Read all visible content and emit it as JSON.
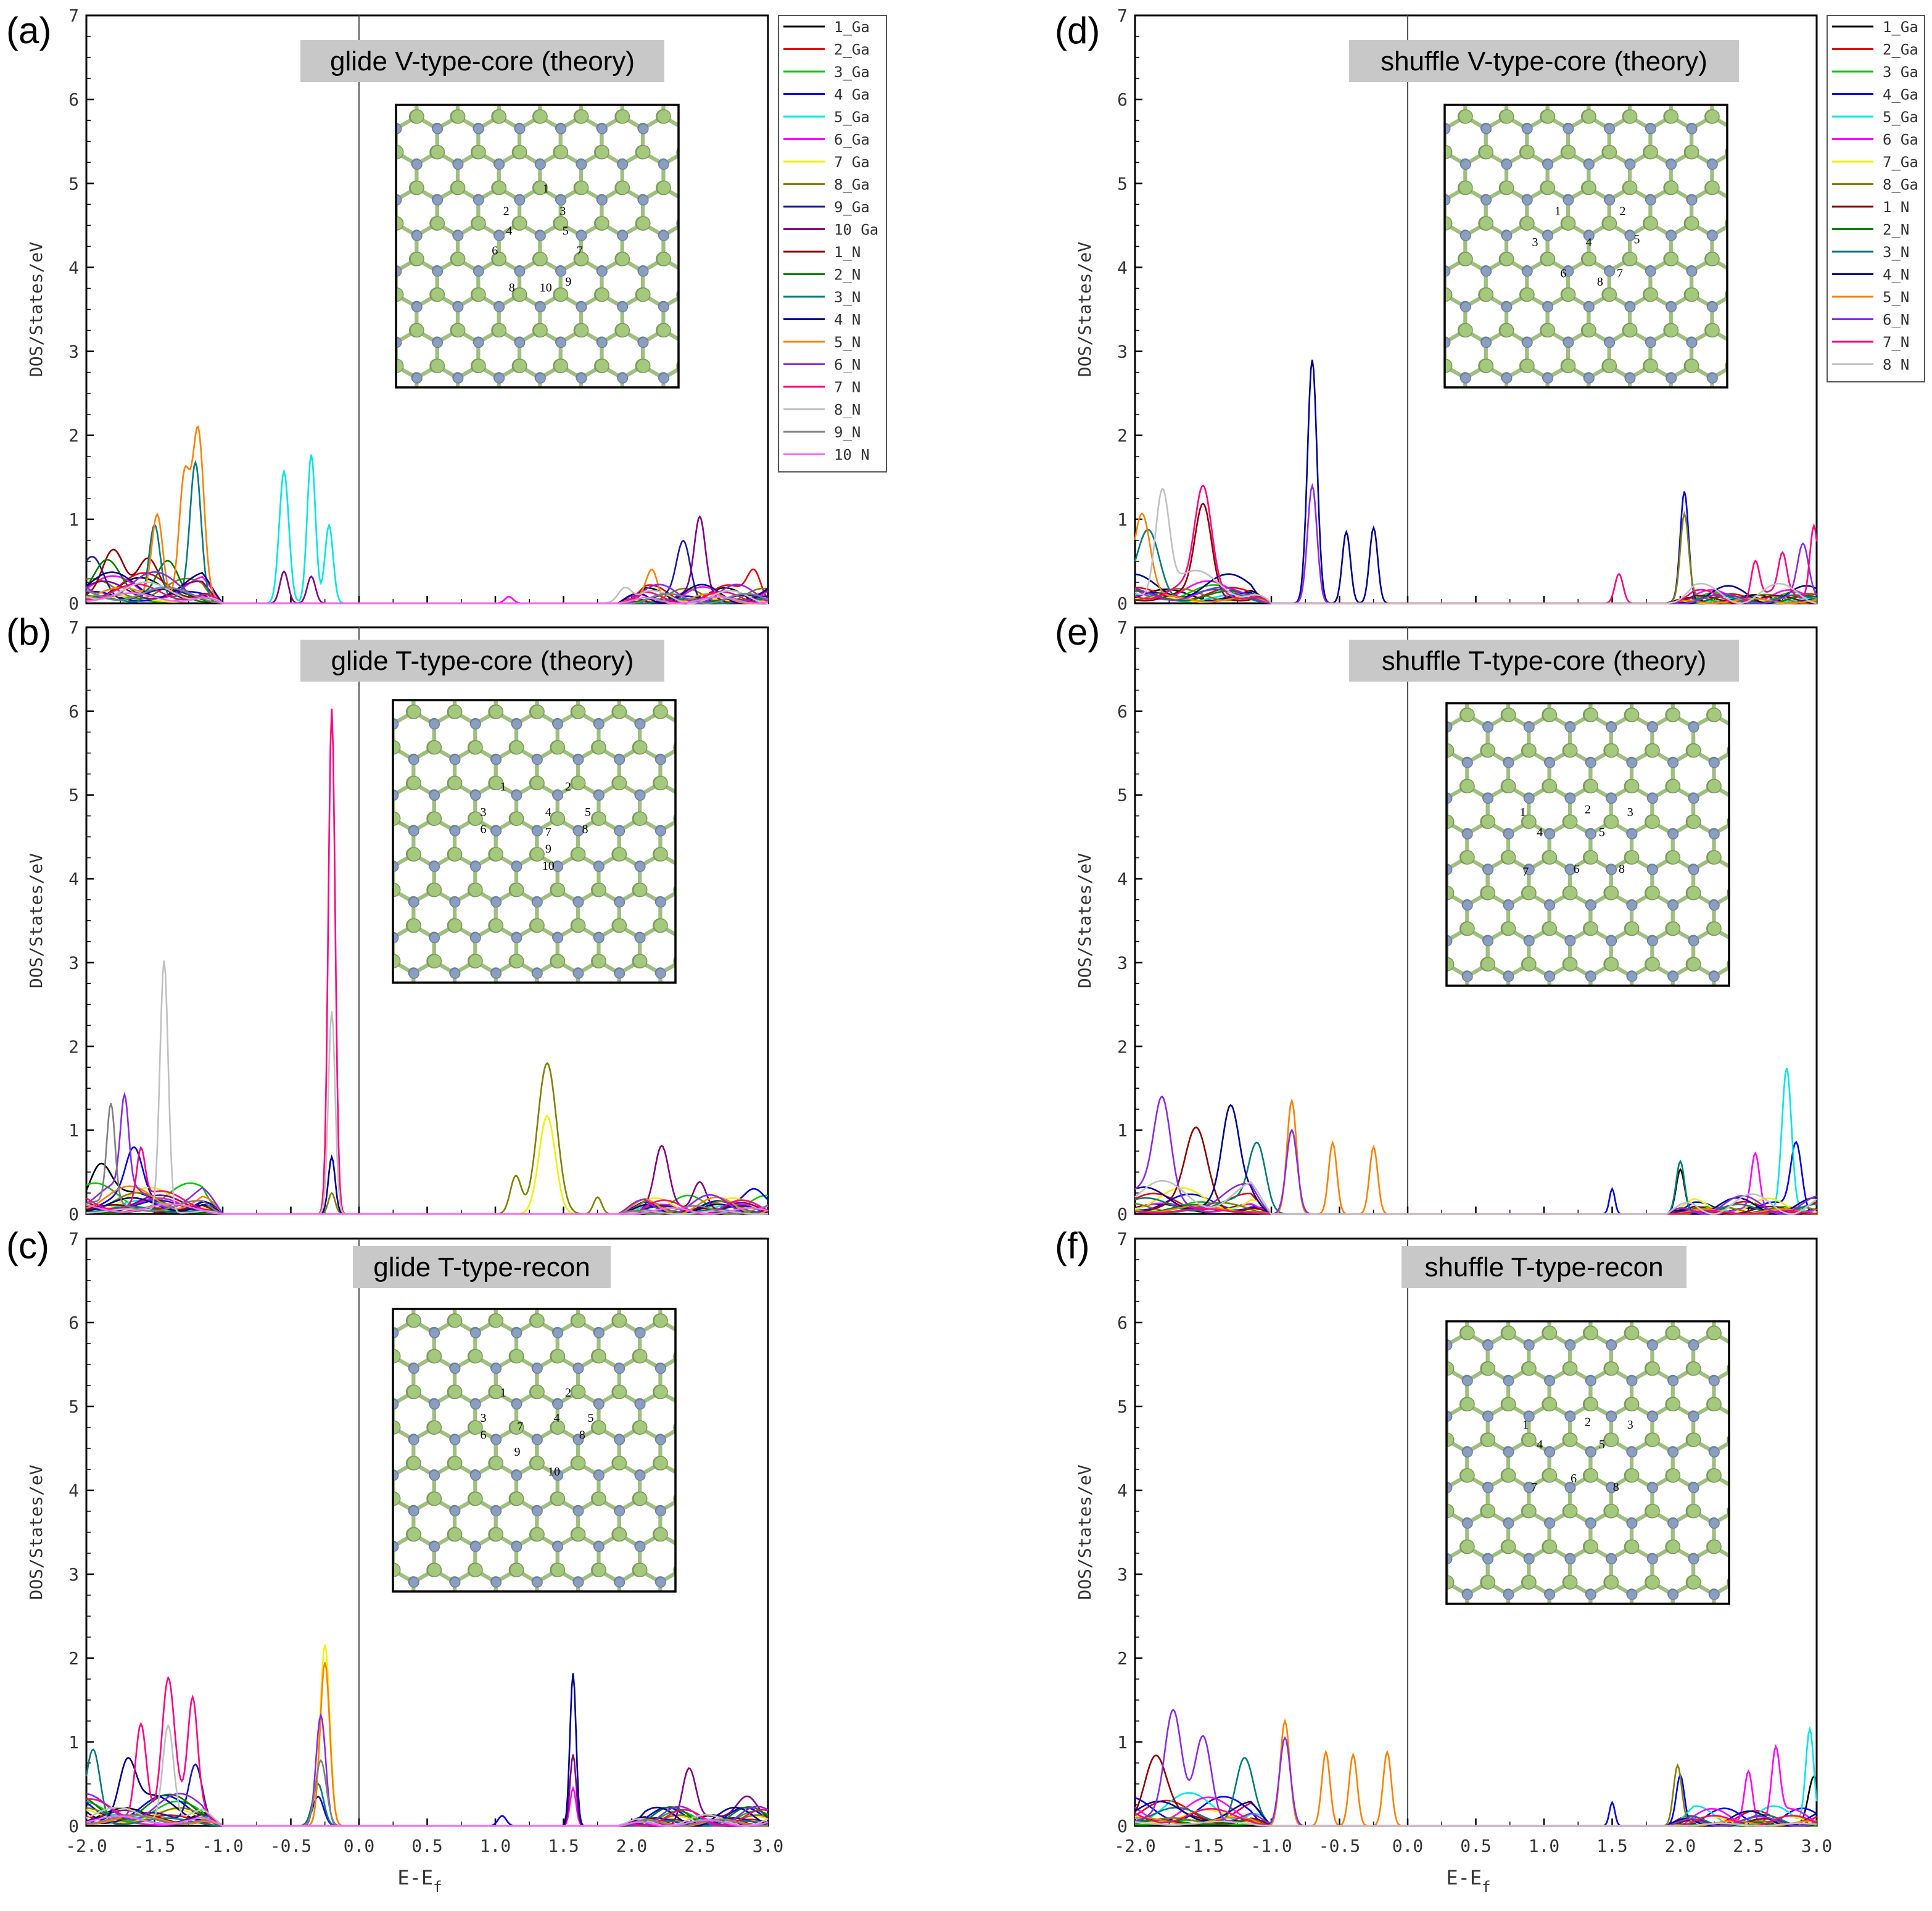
{
  "figure": {
    "xlabel_main": "E-E",
    "xlabel_sub": "f",
    "ylabel": "DOS/States/eV",
    "x_ticks": [
      -2.0,
      -1.5,
      -1.0,
      -0.5,
      0.0,
      0.5,
      1.0,
      1.5,
      2.0,
      2.5,
      3.0
    ],
    "y_ticks": [
      0,
      1,
      2,
      3,
      4,
      5,
      6,
      7
    ],
    "palette": {
      "1_Ga": "#000000",
      "2_Ga": "#e8000b",
      "3_Ga": "#00c800",
      "4_Ga": "#0000e6",
      "5_Ga": "#00e5e5",
      "6_Ga": "#ff00ff",
      "7_Ga": "#f0f000",
      "8_Ga": "#808000",
      "9_Ga": "#1a1a9a",
      "10_Ga": "#800080",
      "1_N": "#8b0000",
      "2_N": "#007a00",
      "3_N": "#007a7a",
      "4_N": "#00008b",
      "5_N": "#ff8000",
      "6_N": "#8a2be2",
      "7_N": "#ff0080",
      "8_N": "#c0c0c0",
      "9_N": "#808080",
      "10_N": "#ff66ff"
    },
    "legend_left": [
      "1_Ga",
      "2_Ga",
      "3_Ga",
      "4 Ga",
      "5_Ga",
      "6_Ga",
      "7 Ga",
      "8_Ga",
      "9_Ga",
      "10 Ga",
      "1_N",
      "2_N",
      "3_N",
      "4 N",
      "5_N",
      "6_N",
      "7 N",
      "8_N",
      "9_N",
      "10 N"
    ],
    "legend_left_keys": [
      "1_Ga",
      "2_Ga",
      "3_Ga",
      "4_Ga",
      "5_Ga",
      "6_Ga",
      "7_Ga",
      "8_Ga",
      "9_Ga",
      "10_Ga",
      "1_N",
      "2_N",
      "3_N",
      "4_N",
      "5_N",
      "6_N",
      "7_N",
      "8_N",
      "9_N",
      "10_N"
    ],
    "legend_right": [
      "1_Ga",
      "2_Ga",
      "3 Ga",
      "4_Ga",
      "5_Ga",
      "6 Ga",
      "7_Ga",
      "8_Ga",
      "1 N",
      "2_N",
      "3_N",
      "4_N",
      "5_N",
      "6_N",
      "7_N",
      "8 N"
    ],
    "legend_right_keys": [
      "1_Ga",
      "2_Ga",
      "3_Ga",
      "4_Ga",
      "5_Ga",
      "6_Ga",
      "7_Ga",
      "8_Ga",
      "1_N",
      "2_N",
      "3_N",
      "4_N",
      "5_N",
      "6_N",
      "7_N",
      "8_N"
    ]
  },
  "chart_data": [
    {
      "panel": "(a)",
      "title": "glide V-type-core (theory)",
      "type": "line",
      "x_range": [
        -2.0,
        3.0
      ],
      "y_range": [
        0,
        7
      ],
      "xlabel": "",
      "ylabel": "DOS/States/eV",
      "inset_atom_labels": [
        "1",
        "2",
        "3",
        "4",
        "5",
        "6",
        "7",
        "8",
        "9",
        "10"
      ],
      "peaks": [
        {
          "series": "5_N",
          "x": -1.48,
          "y": 1.0,
          "w": 0.04
        },
        {
          "series": "5_N",
          "x": -1.28,
          "y": 1.45,
          "w": 0.04
        },
        {
          "series": "5_N",
          "x": -1.18,
          "y": 1.9,
          "w": 0.04
        },
        {
          "series": "3_N",
          "x": -1.5,
          "y": 0.9,
          "w": 0.04
        },
        {
          "series": "3_N",
          "x": -1.2,
          "y": 1.6,
          "w": 0.04
        },
        {
          "series": "5_Ga",
          "x": -0.55,
          "y": 1.57,
          "w": 0.035
        },
        {
          "series": "5_Ga",
          "x": -0.35,
          "y": 1.77,
          "w": 0.03
        },
        {
          "series": "5_Ga",
          "x": -0.22,
          "y": 0.93,
          "w": 0.03
        },
        {
          "series": "10_Ga",
          "x": -0.55,
          "y": 0.38,
          "w": 0.03
        },
        {
          "series": "10_Ga",
          "x": -0.35,
          "y": 0.32,
          "w": 0.03
        },
        {
          "series": "1_N",
          "x": -1.8,
          "y": 0.6,
          "w": 0.08
        },
        {
          "series": "1_N",
          "x": -1.55,
          "y": 0.5,
          "w": 0.08
        },
        {
          "series": "2_N",
          "x": -1.85,
          "y": 0.5,
          "w": 0.1
        },
        {
          "series": "2_N",
          "x": -1.4,
          "y": 0.45,
          "w": 0.08
        },
        {
          "series": "9_Ga",
          "x": -1.95,
          "y": 0.45,
          "w": 0.08
        },
        {
          "series": "10_Ga",
          "x": 2.5,
          "y": 0.88,
          "w": 0.04
        },
        {
          "series": "9_Ga",
          "x": 2.38,
          "y": 0.68,
          "w": 0.05
        },
        {
          "series": "5_N",
          "x": 2.15,
          "y": 0.35,
          "w": 0.04
        },
        {
          "series": "2_Ga",
          "x": 2.9,
          "y": 0.35,
          "w": 0.05
        },
        {
          "series": "6_Ga",
          "x": 1.1,
          "y": 0.08,
          "w": 0.03
        },
        {
          "series": "8_N",
          "x": 1.95,
          "y": 0.18,
          "w": 0.05
        }
      ]
    },
    {
      "panel": "(b)",
      "title": "glide T-type-core (theory)",
      "type": "line",
      "x_range": [
        -2.0,
        3.0
      ],
      "y_range": [
        0,
        7
      ],
      "xlabel": "",
      "ylabel": "DOS/States/eV",
      "inset_atom_labels": [
        "1",
        "2",
        "3",
        "4",
        "5",
        "6",
        "7",
        "8",
        "9",
        "10"
      ],
      "peaks": [
        {
          "series": "9_N",
          "x": -1.82,
          "y": 1.17,
          "w": 0.03
        },
        {
          "series": "6_N",
          "x": -1.72,
          "y": 1.05,
          "w": 0.03
        },
        {
          "series": "8_N",
          "x": -1.43,
          "y": 3.0,
          "w": 0.03
        },
        {
          "series": "7_N",
          "x": -1.6,
          "y": 0.6,
          "w": 0.03
        },
        {
          "series": "7_N",
          "x": -0.2,
          "y": 6.03,
          "w": 0.025
        },
        {
          "series": "8_N",
          "x": -0.2,
          "y": 2.42,
          "w": 0.025
        },
        {
          "series": "4_N",
          "x": -0.2,
          "y": 0.68,
          "w": 0.025
        },
        {
          "series": "8_Ga",
          "x": -0.2,
          "y": 0.25,
          "w": 0.025
        },
        {
          "series": "8_Ga",
          "x": 1.38,
          "y": 1.8,
          "w": 0.07
        },
        {
          "series": "7_Ga",
          "x": 1.38,
          "y": 1.17,
          "w": 0.06
        },
        {
          "series": "8_Ga",
          "x": 1.15,
          "y": 0.45,
          "w": 0.04
        },
        {
          "series": "8_Ga",
          "x": 1.75,
          "y": 0.2,
          "w": 0.03
        },
        {
          "series": "10_Ga",
          "x": 2.22,
          "y": 0.68,
          "w": 0.05
        },
        {
          "series": "10_Ga",
          "x": 2.5,
          "y": 0.38,
          "w": 0.05
        },
        {
          "series": "4_Ga",
          "x": 2.9,
          "y": 0.3,
          "w": 0.08
        },
        {
          "series": "1_Ga",
          "x": -1.9,
          "y": 0.5,
          "w": 0.08
        },
        {
          "series": "4_Ga",
          "x": -1.65,
          "y": 0.55,
          "w": 0.06
        }
      ]
    },
    {
      "panel": "(c)",
      "title": "glide T-type-recon",
      "type": "line",
      "x_range": [
        -2.0,
        3.0
      ],
      "y_range": [
        0,
        7
      ],
      "xlabel": "E-Ef",
      "ylabel": "DOS/States/eV",
      "inset_atom_labels": [
        "1",
        "2",
        "3",
        "4",
        "5",
        "6",
        "7",
        "8",
        "9",
        "10"
      ],
      "peaks": [
        {
          "series": "7_N",
          "x": -1.6,
          "y": 1.15,
          "w": 0.04
        },
        {
          "series": "7_N",
          "x": -1.4,
          "y": 1.52,
          "w": 0.045
        },
        {
          "series": "7_N",
          "x": -1.22,
          "y": 1.23,
          "w": 0.035
        },
        {
          "series": "8_N",
          "x": -1.4,
          "y": 1.15,
          "w": 0.04
        },
        {
          "series": "3_N",
          "x": -1.95,
          "y": 0.85,
          "w": 0.05
        },
        {
          "series": "4_N",
          "x": -1.7,
          "y": 0.6,
          "w": 0.06
        },
        {
          "series": "9_Ga",
          "x": -1.2,
          "y": 0.7,
          "w": 0.05
        },
        {
          "series": "7_Ga",
          "x": -0.25,
          "y": 2.16,
          "w": 0.035
        },
        {
          "series": "5_N",
          "x": -0.25,
          "y": 1.95,
          "w": 0.035
        },
        {
          "series": "6_N",
          "x": -0.28,
          "y": 1.32,
          "w": 0.035
        },
        {
          "series": "9_N",
          "x": -0.28,
          "y": 0.78,
          "w": 0.04
        },
        {
          "series": "3_N",
          "x": -0.3,
          "y": 0.5,
          "w": 0.04
        },
        {
          "series": "4_Ga",
          "x": -0.3,
          "y": 0.35,
          "w": 0.04
        },
        {
          "series": "4_N",
          "x": 1.57,
          "y": 1.82,
          "w": 0.022
        },
        {
          "series": "10_Ga",
          "x": 1.57,
          "y": 0.85,
          "w": 0.022
        },
        {
          "series": "6_Ga",
          "x": 1.57,
          "y": 0.45,
          "w": 0.022
        },
        {
          "series": "10_Ga",
          "x": 2.42,
          "y": 0.65,
          "w": 0.05
        },
        {
          "series": "10_Ga",
          "x": 2.85,
          "y": 0.35,
          "w": 0.08
        },
        {
          "series": "4_Ga",
          "x": 1.05,
          "y": 0.12,
          "w": 0.03
        }
      ]
    },
    {
      "panel": "(d)",
      "title": "shuffle V-type-core (theory)",
      "type": "line",
      "x_range": [
        -2.0,
        3.0
      ],
      "y_range": [
        0,
        7
      ],
      "xlabel": "",
      "ylabel": "DOS/States/eV",
      "inset_atom_labels": [
        "1",
        "2",
        "3",
        "4",
        "5",
        "6",
        "7",
        "8"
      ],
      "peaks": [
        {
          "series": "4_N",
          "x": -0.7,
          "y": 2.9,
          "w": 0.035
        },
        {
          "series": "6_N",
          "x": -0.7,
          "y": 1.4,
          "w": 0.035
        },
        {
          "series": "4_N",
          "x": -0.25,
          "y": 0.9,
          "w": 0.03
        },
        {
          "series": "4_N",
          "x": -0.45,
          "y": 0.85,
          "w": 0.03
        },
        {
          "series": "8_N",
          "x": -1.8,
          "y": 1.22,
          "w": 0.05
        },
        {
          "series": "7_N",
          "x": -1.5,
          "y": 1.15,
          "w": 0.06
        },
        {
          "series": "1_N",
          "x": -1.5,
          "y": 1.05,
          "w": 0.06
        },
        {
          "series": "3_N",
          "x": -1.9,
          "y": 0.8,
          "w": 0.08
        },
        {
          "series": "5_N",
          "x": -1.95,
          "y": 1.0,
          "w": 0.06
        },
        {
          "series": "4_Ga",
          "x": 2.03,
          "y": 1.3,
          "w": 0.03
        },
        {
          "series": "8_Ga",
          "x": 2.03,
          "y": 1.0,
          "w": 0.03
        },
        {
          "series": "7_N",
          "x": 1.55,
          "y": 0.35,
          "w": 0.03
        },
        {
          "series": "7_N",
          "x": 2.55,
          "y": 0.45,
          "w": 0.03
        },
        {
          "series": "7_N",
          "x": 2.75,
          "y": 0.45,
          "w": 0.03
        },
        {
          "series": "7_N",
          "x": 2.98,
          "y": 0.92,
          "w": 0.03
        },
        {
          "series": "6_N",
          "x": 2.9,
          "y": 0.6,
          "w": 0.04
        }
      ]
    },
    {
      "panel": "(e)",
      "title": "shuffle T-type-core (theory)",
      "type": "line",
      "x_range": [
        -2.0,
        3.0
      ],
      "y_range": [
        0,
        7
      ],
      "xlabel": "",
      "ylabel": "DOS/States/eV",
      "inset_atom_labels": [
        "1",
        "2",
        "3",
        "4",
        "5",
        "6",
        "7",
        "8"
      ],
      "peaks": [
        {
          "series": "5_N",
          "x": -0.85,
          "y": 1.35,
          "w": 0.035
        },
        {
          "series": "6_N",
          "x": -0.85,
          "y": 1.0,
          "w": 0.04
        },
        {
          "series": "5_N",
          "x": -0.55,
          "y": 0.85,
          "w": 0.03
        },
        {
          "series": "5_N",
          "x": -0.25,
          "y": 0.8,
          "w": 0.03
        },
        {
          "series": "6_N",
          "x": -1.8,
          "y": 1.08,
          "w": 0.06
        },
        {
          "series": "4_N",
          "x": -1.3,
          "y": 1.0,
          "w": 0.06
        },
        {
          "series": "1_N",
          "x": -1.55,
          "y": 0.9,
          "w": 0.08
        },
        {
          "series": "3_N",
          "x": -1.1,
          "y": 0.75,
          "w": 0.06
        },
        {
          "series": "5_Ga",
          "x": 2.78,
          "y": 1.7,
          "w": 0.035
        },
        {
          "series": "6_Ga",
          "x": 2.55,
          "y": 0.65,
          "w": 0.03
        },
        {
          "series": "4_Ga",
          "x": 2.85,
          "y": 0.8,
          "w": 0.04
        },
        {
          "series": "1_Ga",
          "x": 2.0,
          "y": 0.5,
          "w": 0.03
        },
        {
          "series": "3_N",
          "x": 2.0,
          "y": 0.6,
          "w": 0.03
        },
        {
          "series": "4_Ga",
          "x": 1.5,
          "y": 0.3,
          "w": 0.02
        },
        {
          "series": "10_Ga",
          "x": 2.98,
          "y": 0.85,
          "w": 0.03
        }
      ]
    },
    {
      "panel": "(f)",
      "title": "shuffle T-type-recon",
      "type": "line",
      "x_range": [
        -2.0,
        3.0
      ],
      "y_range": [
        0,
        7
      ],
      "xlabel": "E-Ef",
      "ylabel": "DOS/States/eV",
      "inset_atom_labels": [
        "1",
        "2",
        "3",
        "4",
        "5",
        "6",
        "7",
        "8"
      ],
      "peaks": [
        {
          "series": "5_N",
          "x": -0.9,
          "y": 1.25,
          "w": 0.035
        },
        {
          "series": "6_N",
          "x": -0.9,
          "y": 1.05,
          "w": 0.04
        },
        {
          "series": "5_N",
          "x": -0.6,
          "y": 0.88,
          "w": 0.03
        },
        {
          "series": "5_N",
          "x": -0.4,
          "y": 0.85,
          "w": 0.03
        },
        {
          "series": "5_N",
          "x": -0.15,
          "y": 0.88,
          "w": 0.03
        },
        {
          "series": "6_N",
          "x": -1.72,
          "y": 1.2,
          "w": 0.06
        },
        {
          "series": "6_N",
          "x": -1.5,
          "y": 1.0,
          "w": 0.06
        },
        {
          "series": "1_N",
          "x": -1.85,
          "y": 0.75,
          "w": 0.08
        },
        {
          "series": "3_N",
          "x": -1.2,
          "y": 0.7,
          "w": 0.06
        },
        {
          "series": "8_Ga",
          "x": 1.98,
          "y": 0.7,
          "w": 0.03
        },
        {
          "series": "4_Ga",
          "x": 2.0,
          "y": 0.6,
          "w": 0.03
        },
        {
          "series": "6_Ga",
          "x": 2.5,
          "y": 0.65,
          "w": 0.03
        },
        {
          "series": "6_Ga",
          "x": 2.7,
          "y": 0.8,
          "w": 0.03
        },
        {
          "series": "5_Ga",
          "x": 2.95,
          "y": 1.15,
          "w": 0.03
        },
        {
          "series": "4_Ga",
          "x": 1.5,
          "y": 0.28,
          "w": 0.02
        },
        {
          "series": "1_Ga",
          "x": 2.98,
          "y": 0.55,
          "w": 0.04
        }
      ]
    }
  ]
}
